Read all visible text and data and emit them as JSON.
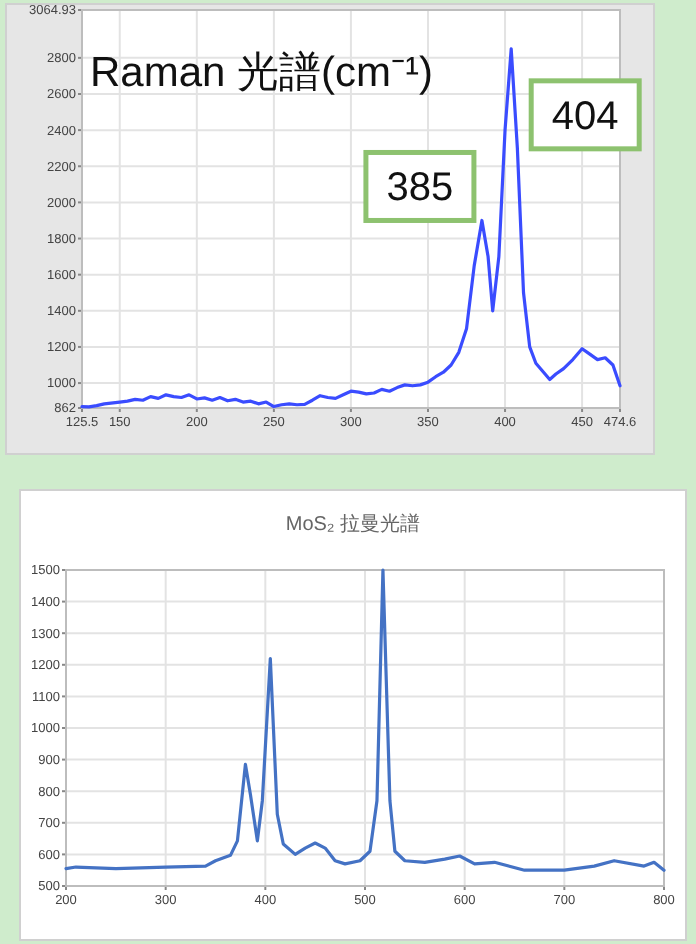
{
  "chart_data": [
    {
      "type": "line",
      "title": "Raman 光譜(cm⁻¹)",
      "x": [
        125.5,
        130,
        135,
        140,
        150,
        155,
        160,
        165,
        170,
        175,
        180,
        185,
        190,
        195,
        200,
        205,
        210,
        215,
        220,
        225,
        230,
        235,
        240,
        245,
        250,
        255,
        260,
        265,
        270,
        275,
        280,
        285,
        290,
        295,
        300,
        305,
        310,
        315,
        320,
        325,
        330,
        335,
        340,
        345,
        350,
        355,
        360,
        365,
        370,
        375,
        380,
        385,
        389,
        392,
        396,
        400,
        404,
        408,
        412,
        416,
        420,
        425,
        429,
        433,
        438,
        444,
        450,
        455,
        460,
        465,
        470,
        474.6
      ],
      "series": [
        {
          "color": "#3a4cff",
          "values": [
            870,
            868,
            875,
            885,
            895,
            900,
            910,
            905,
            925,
            915,
            935,
            925,
            920,
            935,
            912,
            918,
            905,
            920,
            902,
            910,
            895,
            900,
            885,
            895,
            870,
            880,
            885,
            880,
            882,
            905,
            930,
            920,
            915,
            935,
            955,
            950,
            940,
            945,
            965,
            955,
            975,
            990,
            985,
            990,
            1005,
            1035,
            1060,
            1100,
            1170,
            1300,
            1650,
            1900,
            1700,
            1400,
            1700,
            2400,
            2850,
            2300,
            1500,
            1200,
            1110,
            1060,
            1020,
            1050,
            1080,
            1130,
            1190,
            1160,
            1130,
            1140,
            1100,
            985
          ]
        }
      ],
      "xlim": [
        125.5,
        474.6
      ],
      "ylim": [
        862,
        3064.93
      ],
      "xticks": [
        125.5,
        150,
        200,
        250,
        300,
        350,
        400,
        450,
        474.6
      ],
      "yticks": [
        862,
        1000,
        1200,
        1400,
        1600,
        1800,
        2000,
        2200,
        2400,
        2600,
        2800,
        3064.93
      ],
      "grid": true,
      "annotations": [
        {
          "text": "385",
          "x": 385,
          "y": 1900
        },
        {
          "text": "404",
          "x": 404,
          "y": 2850
        }
      ]
    },
    {
      "type": "line",
      "title": "MoS₂ 拉曼光譜",
      "x": [
        200,
        210,
        250,
        300,
        340,
        350,
        365,
        372,
        380,
        385,
        392,
        397,
        405,
        412,
        418,
        430,
        440,
        450,
        460,
        470,
        480,
        495,
        505,
        512,
        518,
        525,
        530,
        540,
        560,
        580,
        595,
        610,
        630,
        660,
        700,
        730,
        750,
        780,
        790,
        800
      ],
      "series": [
        {
          "color": "#4472c4",
          "values": [
            555,
            560,
            555,
            560,
            563,
            580,
            597,
            643,
            885,
            790,
            643,
            770,
            1220,
            727,
            633,
            600,
            620,
            636,
            620,
            580,
            570,
            580,
            610,
            770,
            1500,
            770,
            610,
            580,
            575,
            585,
            595,
            570,
            575,
            550,
            550,
            563,
            580,
            563,
            575,
            550
          ]
        }
      ],
      "xlim": [
        200,
        800
      ],
      "ylim": [
        500,
        1500
      ],
      "xticks": [
        200,
        300,
        400,
        500,
        600,
        700,
        800
      ],
      "yticks": [
        500,
        600,
        700,
        800,
        900,
        1000,
        1100,
        1200,
        1300,
        1400,
        1500
      ],
      "grid": true
    }
  ]
}
